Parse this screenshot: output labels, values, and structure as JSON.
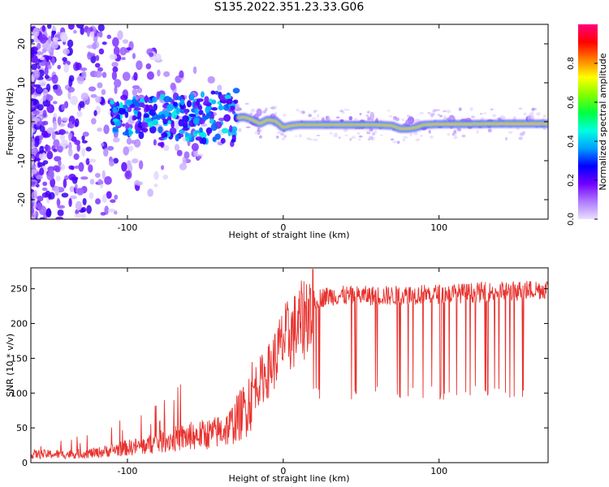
{
  "figure": {
    "title": "S135.2022.351.23.33.G06"
  },
  "chart_data": [
    {
      "type": "heatmap",
      "title": "",
      "xlabel": "Height of straight line (km)",
      "ylabel": "Frequency (Hz)",
      "xlim": [
        -162,
        170
      ],
      "ylim": [
        -25,
        25
      ],
      "x_ticks": [
        -100,
        0,
        100
      ],
      "y_ticks": [
        -20,
        -10,
        0,
        10,
        20
      ],
      "colorbar": {
        "label": "Normalized spectral amplitude",
        "range": [
          0,
          1
        ],
        "ticks": [
          0.0,
          0.2,
          0.4,
          0.6,
          0.8
        ],
        "colormap": [
          "#e8e0ff",
          "#b078ff",
          "#7000ff",
          "#0000ff",
          "#00a0ff",
          "#00ffe0",
          "#00ff40",
          "#80ff00",
          "#ffff00",
          "#ff8000",
          "#ff0000",
          "#ff0080"
        ]
      },
      "ridge": {
        "description_points_x": [
          -30,
          -25,
          -20,
          -15,
          -10,
          -5,
          0,
          5,
          10,
          20,
          40,
          60,
          70,
          75,
          80,
          85,
          90,
          100,
          120,
          140,
          160,
          170
        ],
        "description_points_y": [
          1.0,
          1.2,
          0.5,
          -0.5,
          0.5,
          0.2,
          -1.5,
          -1.0,
          -0.8,
          -0.8,
          -0.8,
          -0.8,
          -1.0,
          -1.8,
          -1.8,
          -1.5,
          -0.8,
          -0.6,
          -0.6,
          -0.5,
          -0.5,
          -0.5
        ]
      }
    },
    {
      "type": "line",
      "title": "",
      "xlabel": "Height of straight line (km)",
      "ylabel": "SNR (10 * v/v)",
      "xlim": [
        -162,
        170
      ],
      "ylim": [
        0,
        280
      ],
      "x_ticks": [
        -100,
        0,
        100
      ],
      "y_ticks": [
        0,
        50,
        100,
        150,
        200,
        250
      ],
      "color": "#e8322e",
      "series": [
        {
          "x": [
            -162,
            -140,
            -120,
            -105,
            -90,
            -75,
            -60,
            -45,
            -35,
            -25,
            -18,
            -10,
            -5,
            0,
            5,
            10,
            15,
            20,
            30,
            50,
            70,
            90,
            110,
            130,
            150,
            170
          ],
          "values": [
            12,
            12,
            14,
            20,
            24,
            32,
            38,
            42,
            50,
            75,
            110,
            130,
            150,
            175,
            185,
            195,
            215,
            235,
            240,
            240,
            240,
            242,
            243,
            245,
            247,
            250
          ]
        }
      ],
      "dropouts": {
        "x_range": [
          17,
          155
        ],
        "floor": 90
      }
    }
  ]
}
